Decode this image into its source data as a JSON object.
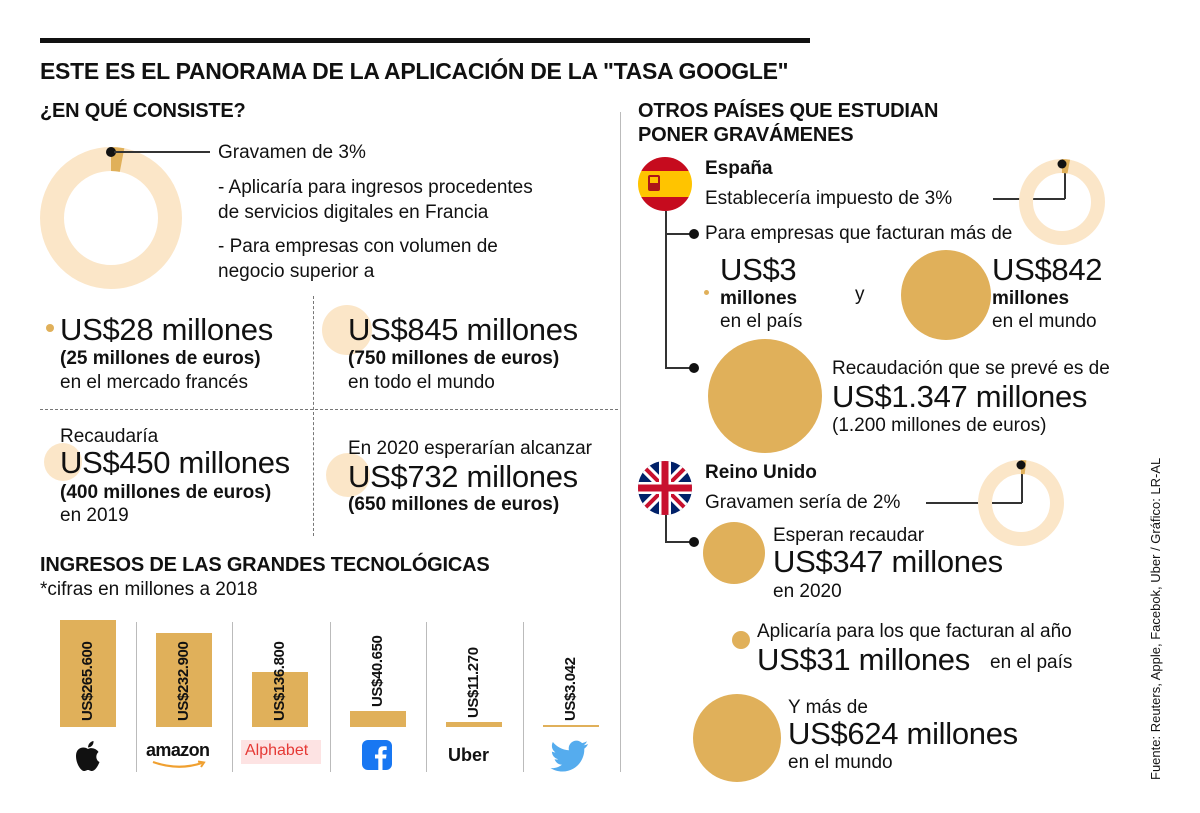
{
  "title": "ESTE ES EL PANORAMA DE LA APLICACIÓN DE LA \"TASA GOOGLE\"",
  "left": {
    "section_title": "¿EN QUÉ CONSISTE?",
    "gravamen": "Gravamen de 3%",
    "gravamen_percent": 3,
    "desc1_line1": "- Aplicaría para ingresos procedentes",
    "desc1_line2": "de servicios digitales en Francia",
    "desc2_line1": "- Para empresas con volumen de",
    "desc2_line2": "negocio superior a",
    "stat1_big": "US$28 millones",
    "stat1_sub": "(25 millones de euros)",
    "stat1_desc": "en el mercado francés",
    "stat2_big": "US$845 millones",
    "stat2_sub": "(750 millones de euros)",
    "stat2_desc": "en todo el mundo",
    "stat3_pre": "Recaudaría",
    "stat3_big": "US$450 millones",
    "stat3_sub": "(400 millones de euros)",
    "stat3_desc": "en 2019",
    "stat4_pre": "En 2020 esperarían alcanzar",
    "stat4_big": "US$732 millones",
    "stat4_sub": "(650 millones de euros)"
  },
  "chart_data": {
    "type": "bar",
    "title": "INGRESOS DE LAS GRANDES TECNOLÓGICAS",
    "subtitle": "*cifras en millones a 2018",
    "categories": [
      "Apple",
      "amazon",
      "Alphabet",
      "Facebook",
      "Uber",
      "Twitter"
    ],
    "values": [
      265600,
      232900,
      136800,
      40650,
      11270,
      3042
    ],
    "labels": [
      "US$265.600",
      "US$232.900",
      "US$136.800",
      "US$40.650",
      "US$11.270",
      "US$3.042"
    ],
    "ylim": [
      0,
      265600
    ],
    "color": "#e0b05a"
  },
  "right": {
    "section_title_1": "OTROS PAÍSES QUE ESTUDIAN",
    "section_title_2": "PONER GRAVÁMENES",
    "spain_name": "España",
    "spain_tax": "Establecería impuesto de 3%",
    "spain_percent": 3,
    "spain_companies": "Para empresas que facturan más de",
    "spain_local_big": "US$3",
    "spain_local_unit": "millones",
    "spain_local_desc": "en el país",
    "spain_and": "y",
    "spain_world_big": "US$842",
    "spain_world_unit": "millones",
    "spain_world_desc": "en el mundo",
    "spain_rec_pre": "Recaudación que se prevé es de",
    "spain_rec_big": "US$1.347 millones",
    "spain_rec_sub": "(1.200 millones de euros)",
    "uk_name": "Reino Unido",
    "uk_tax": "Gravamen sería de 2%",
    "uk_percent": 2,
    "uk_expect_pre": "Esperan recaudar",
    "uk_expect_big": "US$347 millones",
    "uk_expect_desc": "en 2020",
    "uk_apply_pre": "Aplicaría para los que facturan al año",
    "uk_apply_big": "US$31 millones",
    "uk_apply_desc": "en el país",
    "uk_more_pre": "Y más de",
    "uk_more_big": "US$624 millones",
    "uk_more_desc": "en el mundo"
  },
  "source": "Fuente: Reuters, Apple, Facebok, Uber / Gráfico: LR-AL",
  "colors": {
    "accent": "#e0b05a",
    "pale": "#fbe6c8",
    "text": "#111111"
  }
}
